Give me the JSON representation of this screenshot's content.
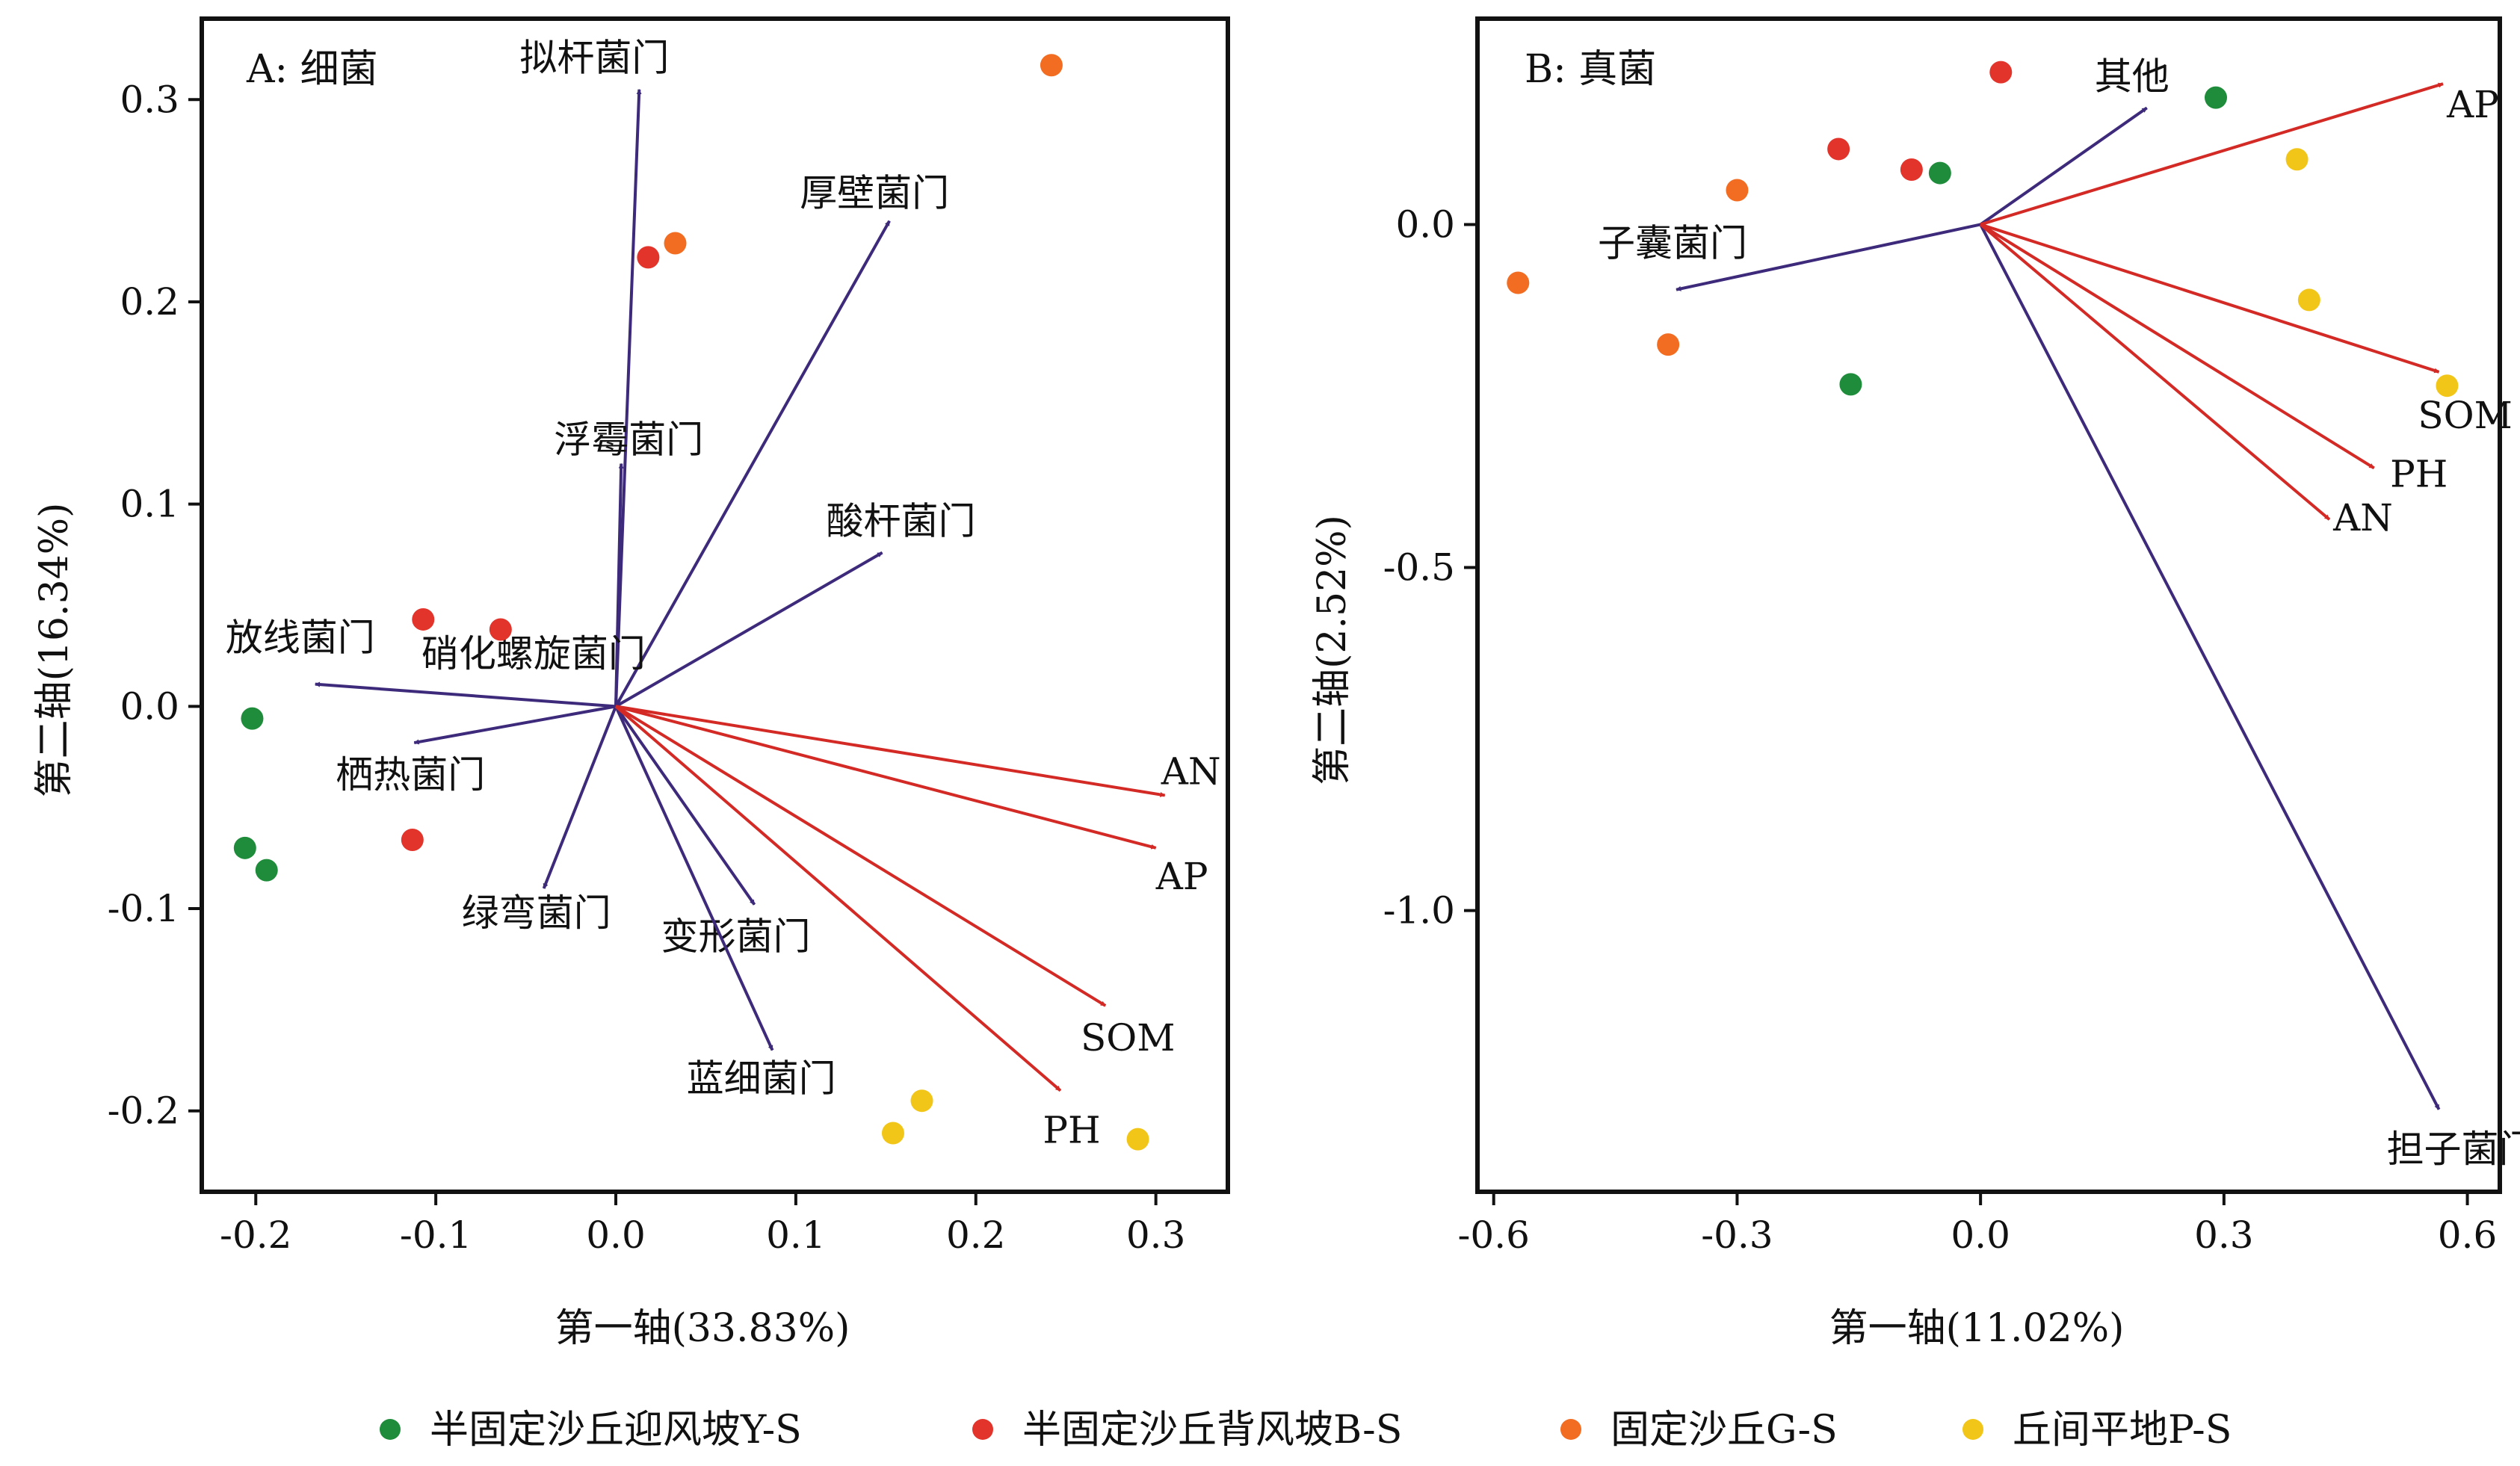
{
  "chart_data": [
    {
      "type": "scatter",
      "panel_label": "A: 细菌",
      "xlabel": "第一轴(33.83%)",
      "ylabel": "第二轴(16.34%)",
      "xlim": [
        -0.23,
        0.34
      ],
      "ylim": [
        -0.24,
        0.34
      ],
      "x_ticks": [
        -0.2,
        -0.1,
        0.0,
        0.1,
        0.2,
        0.3
      ],
      "x_tick_labels": [
        "-0.2",
        "-0.1",
        "0.0",
        "0.1",
        "0.2",
        "0.3"
      ],
      "y_ticks": [
        -0.2,
        -0.1,
        0.0,
        0.1,
        0.2,
        0.3
      ],
      "y_tick_labels": [
        "-0.2",
        "-0.1",
        "0.0",
        "0.1",
        "0.2",
        "0.3"
      ],
      "grid": false,
      "series": [
        {
          "name": "半固定沙丘迎风坡Y-S",
          "color": "#1e8c3a",
          "points": [
            [
              -0.202,
              -0.006
            ],
            [
              -0.206,
              -0.07
            ],
            [
              -0.194,
              -0.081
            ]
          ]
        },
        {
          "name": "半固定沙丘背风坡B-S",
          "color": "#e3342b",
          "points": [
            [
              -0.107,
              0.043
            ],
            [
              -0.064,
              0.038
            ],
            [
              -0.113,
              -0.066
            ],
            [
              0.018,
              0.222
            ]
          ]
        },
        {
          "name": "固定沙丘G-S",
          "color": "#f26d21",
          "points": [
            [
              0.242,
              0.317
            ],
            [
              0.033,
              0.229
            ]
          ]
        },
        {
          "name": "丘间平地P-S",
          "color": "#f2c618",
          "points": [
            [
              0.154,
              -0.211
            ],
            [
              0.17,
              -0.195
            ],
            [
              0.29,
              -0.214
            ]
          ]
        }
      ],
      "arrows": [
        {
          "label": "拟杆菌门",
          "x": 0.013,
          "y": 0.305,
          "color": "#3d2a7a"
        },
        {
          "label": "厚壁菌门",
          "x": 0.152,
          "y": 0.24,
          "color": "#3d2a7a"
        },
        {
          "label": "浮霉菌门",
          "x": 0.003,
          "y": 0.12,
          "color": "#3d2a7a"
        },
        {
          "label": "酸杆菌门",
          "x": 0.148,
          "y": 0.076,
          "color": "#3d2a7a"
        },
        {
          "label": "硝化螺旋菌门",
          "x": 0.002,
          "y": 0.003,
          "color": "#3d2a7a"
        },
        {
          "label": "放线菌门",
          "x": -0.167,
          "y": 0.011,
          "color": "#3d2a7a"
        },
        {
          "label": "栖热菌门",
          "x": -0.112,
          "y": -0.018,
          "color": "#3d2a7a"
        },
        {
          "label": "绿弯菌门",
          "x": -0.04,
          "y": -0.09,
          "color": "#3d2a7a"
        },
        {
          "label": "变形菌门",
          "x": 0.077,
          "y": -0.098,
          "color": "#3d2a7a"
        },
        {
          "label": "蓝细菌门",
          "x": 0.087,
          "y": -0.17,
          "color": "#3d2a7a"
        },
        {
          "label": "AN",
          "x": 0.305,
          "y": -0.044,
          "color": "#d42a26"
        },
        {
          "label": "AP",
          "x": 0.3,
          "y": -0.07,
          "color": "#d42a26"
        },
        {
          "label": "SOM",
          "x": 0.272,
          "y": -0.148,
          "color": "#d42a26"
        },
        {
          "label": "PH",
          "x": 0.247,
          "y": -0.19,
          "color": "#d42a26"
        }
      ]
    },
    {
      "type": "scatter",
      "panel_label": "B: 真菌",
      "xlabel": "第一轴(11.02%)",
      "ylabel": "第二轴(2.52%)",
      "xlim": [
        -0.62,
        0.64
      ],
      "ylim": [
        -1.41,
        0.3
      ],
      "x_ticks": [
        -0.6,
        -0.3,
        0.0,
        0.3,
        0.6
      ],
      "x_tick_labels": [
        "-0.6",
        "-0.3",
        "0.0",
        "0.3",
        "0.6"
      ],
      "y_ticks": [
        0.0,
        -0.5,
        -1.0
      ],
      "y_tick_labels": [
        "0.0",
        "-0.5",
        "-1.0"
      ],
      "grid": false,
      "series": [
        {
          "name": "半固定沙丘迎风坡Y-S",
          "color": "#1e8c3a",
          "points": [
            [
              0.29,
              0.185
            ],
            [
              -0.05,
              0.075
            ],
            [
              -0.16,
              -0.233
            ]
          ]
        },
        {
          "name": "半固定沙丘背风坡B-S",
          "color": "#e3342b",
          "points": [
            [
              0.025,
              0.222
            ],
            [
              -0.175,
              0.11
            ],
            [
              -0.085,
              0.08
            ]
          ]
        },
        {
          "name": "固定沙丘G-S",
          "color": "#f26d21",
          "points": [
            [
              -0.3,
              0.05
            ],
            [
              -0.57,
              -0.085
            ],
            [
              -0.385,
              -0.175
            ]
          ]
        },
        {
          "name": "丘间平地P-S",
          "color": "#f2c618",
          "points": [
            [
              0.39,
              0.095
            ],
            [
              0.405,
              -0.11
            ],
            [
              0.575,
              -0.235
            ]
          ]
        }
      ],
      "arrows": [
        {
          "label": "其他",
          "x": 0.205,
          "y": 0.17,
          "color": "#3d2a7a"
        },
        {
          "label": "子囊菌门",
          "x": -0.375,
          "y": -0.095,
          "color": "#3d2a7a"
        },
        {
          "label": "担子菌门",
          "x": 0.565,
          "y": -1.29,
          "color": "#3d2a7a"
        },
        {
          "label": "AP",
          "x": 0.57,
          "y": 0.205,
          "color": "#d42a26"
        },
        {
          "label": "SOM",
          "x": 0.565,
          "y": -0.215,
          "color": "#d42a26"
        },
        {
          "label": "PH",
          "x": 0.485,
          "y": -0.355,
          "color": "#d42a26"
        },
        {
          "label": "AN",
          "x": 0.43,
          "y": -0.43,
          "color": "#d42a26"
        }
      ]
    }
  ],
  "legend": {
    "position": "bottom",
    "items": [
      {
        "label": "半固定沙丘迎风坡Y-S",
        "color": "#1e8c3a"
      },
      {
        "label": "半固定沙丘背风坡B-S",
        "color": "#e3342b"
      },
      {
        "label": "固定沙丘G-S",
        "color": "#f26d21"
      },
      {
        "label": "丘间平地P-S",
        "color": "#f2c618"
      }
    ]
  }
}
